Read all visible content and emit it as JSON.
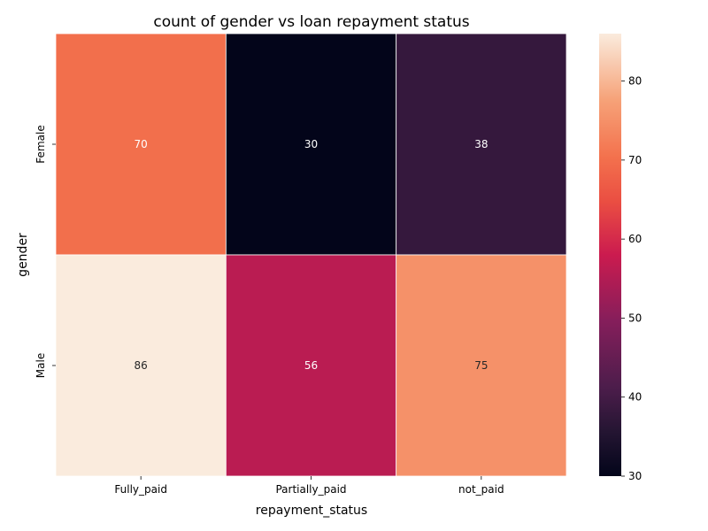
{
  "chart_data": {
    "type": "heatmap",
    "title": "count of gender vs loan repayment status",
    "xlabel": "repayment_status",
    "ylabel": "gender",
    "x_categories": [
      "Fully_paid",
      "Partially_paid",
      "not_paid"
    ],
    "y_categories": [
      "Female",
      "Male"
    ],
    "values": [
      [
        70,
        30,
        38
      ],
      [
        86,
        56,
        75
      ]
    ],
    "colorbar": {
      "range": [
        30,
        86
      ],
      "ticks": [
        30,
        40,
        50,
        60,
        70,
        80
      ],
      "colormap": "rocket"
    },
    "annotations": true,
    "grid": false,
    "legend": "colorbar-right"
  }
}
